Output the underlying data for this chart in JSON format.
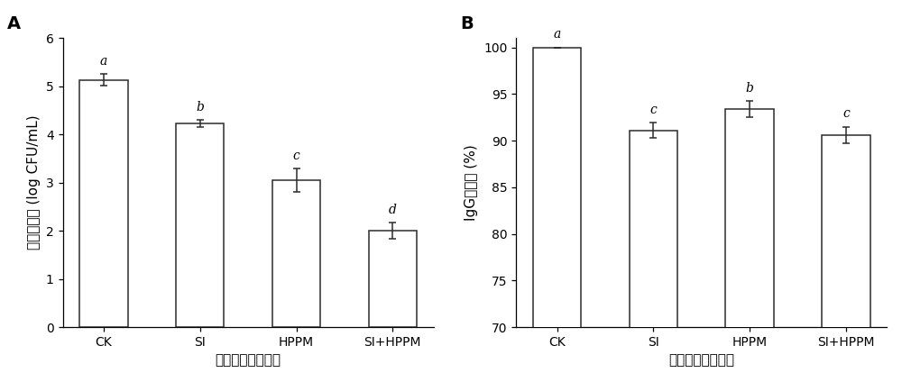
{
  "chart_A": {
    "panel_label": "A",
    "categories": [
      "CK",
      "SI",
      "HPPM",
      "SI+HPPM"
    ],
    "values": [
      5.13,
      4.23,
      3.05,
      2.0
    ],
    "errors": [
      0.12,
      0.07,
      0.25,
      0.17
    ],
    "sig_labels": [
      "a",
      "b",
      "c",
      "d"
    ],
    "ylabel": "微生物数量 (log CFU/mL)",
    "xlabel": "不同杀菌处理方式",
    "ylim": [
      0,
      6
    ],
    "yticks": [
      0,
      1,
      2,
      3,
      4,
      5,
      6
    ]
  },
  "chart_B": {
    "panel_label": "B",
    "categories": [
      "CK",
      "SI",
      "HPPM",
      "SI+HPPM"
    ],
    "values": [
      100.0,
      91.1,
      93.4,
      90.6
    ],
    "errors": [
      0.0,
      0.8,
      0.85,
      0.9
    ],
    "sig_labels": [
      "a",
      "c",
      "b",
      "c"
    ],
    "ylabel": "IgG保留率 (%)",
    "xlabel": "不同杀菌处理方式",
    "ylim": [
      70,
      101
    ],
    "yticks": [
      70,
      75,
      80,
      85,
      90,
      95,
      100
    ]
  },
  "bar_color": "white",
  "bar_edgecolor": "#2b2b2b",
  "bar_linewidth": 1.1,
  "bar_width": 0.5,
  "error_color": "#2b2b2b",
  "error_linewidth": 1.1,
  "error_capsize": 3,
  "sig_fontsize": 10,
  "sig_fontstyle": "italic",
  "sig_fontweight": "normal",
  "axis_label_fontsize": 11,
  "tick_fontsize": 10,
  "panel_label_fontsize": 14,
  "panel_label_fontweight": "bold",
  "background_color": "white"
}
